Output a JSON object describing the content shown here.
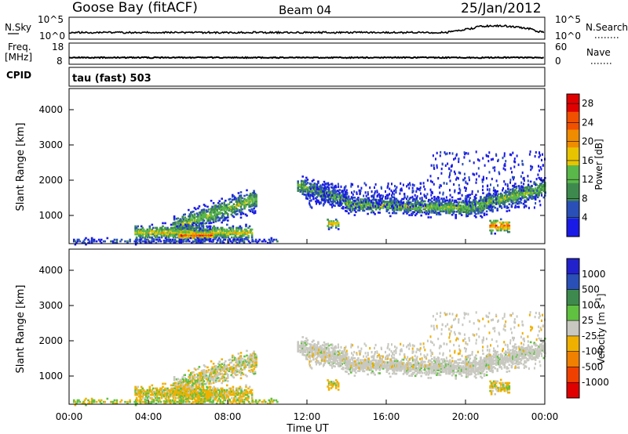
{
  "header": {
    "station": "Goose Bay (fitACF)",
    "beam": "Beam 04",
    "date": "25/Jan/2012"
  },
  "sky_panel": {
    "left_label": "N.Sky",
    "left_ticks": [
      "10^5",
      "10^0"
    ],
    "right_label": "N.Search",
    "right_ticks": [
      "10^5",
      "10^0"
    ]
  },
  "freq_panel": {
    "left_label_1": "Freq.",
    "left_label_2": "[MHz]",
    "left_ticks": [
      "18",
      "8"
    ],
    "right_label": "Nave",
    "right_ticks": [
      "60",
      "0"
    ]
  },
  "cpid": {
    "label": "CPID",
    "value": "tau (fast) 503"
  },
  "colors": {
    "power": [
      "#1a1ae6",
      "#2a50b8",
      "#3e8a4e",
      "#5ab84a",
      "#e8c400",
      "#f08c00",
      "#f05000",
      "#e00000"
    ],
    "velocity": [
      "#2222cc",
      "#2a50b8",
      "#3e8a4e",
      "#60c040",
      "#c8c8c0",
      "#f0b000",
      "#f08000",
      "#f04000",
      "#e00000"
    ]
  },
  "chart_data": [
    {
      "type": "heatmap",
      "name": "power",
      "xlabel": "",
      "ylabel": "Slant Range [km]",
      "ylim": [
        200,
        4600
      ],
      "yticks": [
        "1000",
        "2000",
        "3000",
        "4000"
      ],
      "xlim_hours": [
        0,
        24
      ],
      "colorbar": {
        "label": "Power [dB]",
        "ticks": [
          "4",
          "8",
          "12",
          "16",
          "20",
          "24",
          "28"
        ],
        "range": [
          0,
          30
        ]
      }
    },
    {
      "type": "heatmap",
      "name": "velocity",
      "xlabel": "Time UT",
      "ylabel": "Slant Range [km]",
      "ylim": [
        200,
        4600
      ],
      "yticks": [
        "1000",
        "2000",
        "3000",
        "4000"
      ],
      "xticks": [
        "00:00",
        "04:00",
        "08:00",
        "12:00",
        "16:00",
        "20:00",
        "00:00"
      ],
      "xlim_hours": [
        0,
        24
      ],
      "colorbar": {
        "label": "Velocity [m s^-1]",
        "ticks": [
          "1000",
          "500",
          "100",
          "25",
          "-25",
          "-100",
          "-500",
          "-1000"
        ]
      }
    }
  ]
}
